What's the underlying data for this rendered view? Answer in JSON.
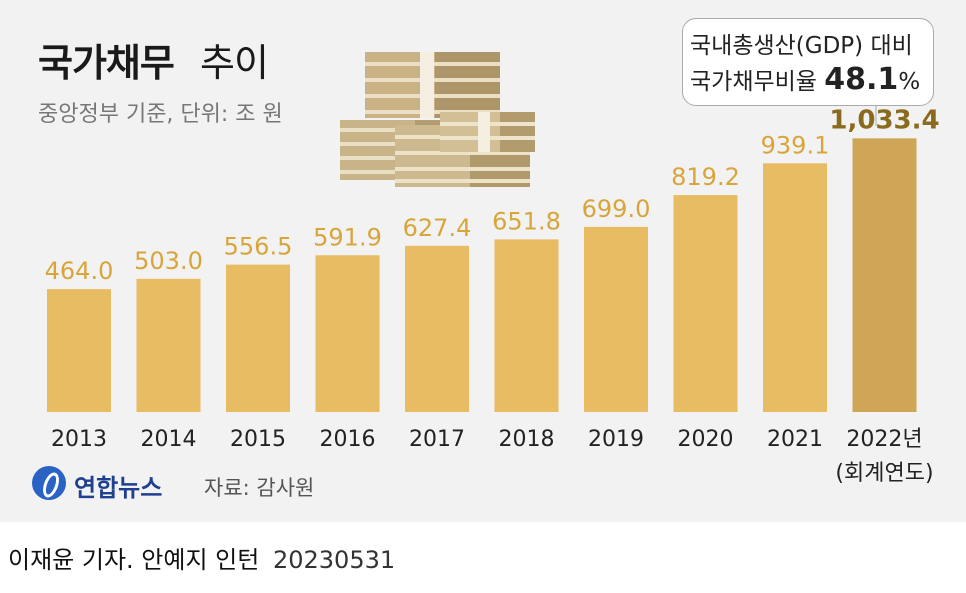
{
  "header": {
    "title_bold": "국가채무",
    "title_light": "추이",
    "subtitle": "중앙정부 기준, 단위: 조 원"
  },
  "callout": {
    "line1": "국내총생산(GDP) 대비",
    "line2_prefix": "국가채무비율",
    "ratio_value": "48.1",
    "ratio_unit": "%"
  },
  "chart_data": {
    "type": "bar",
    "categories": [
      "2013",
      "2014",
      "2015",
      "2016",
      "2017",
      "2018",
      "2019",
      "2020",
      "2021",
      "2022년"
    ],
    "category_note": "(회계연도)",
    "values": [
      464.0,
      503.0,
      556.5,
      591.9,
      627.4,
      651.8,
      699.0,
      819.2,
      939.1,
      1033.4
    ],
    "value_labels": [
      "464.0",
      "503.0",
      "556.5",
      "591.9",
      "627.4",
      "651.8",
      "699.0",
      "819.2",
      "939.1",
      "1,033.4"
    ],
    "ylim": [
      0,
      1080
    ],
    "colors": {
      "bar": "#e8bc62",
      "highlight_bar": "#cfa558",
      "label": "#d9a53a",
      "highlight_label": "#8a6a1e"
    }
  },
  "footer": {
    "logo": "연합뉴스",
    "source": "자료: 감사원",
    "credit": "이재윤 기자. 안예지 인턴",
    "credit_date": "20230531"
  }
}
